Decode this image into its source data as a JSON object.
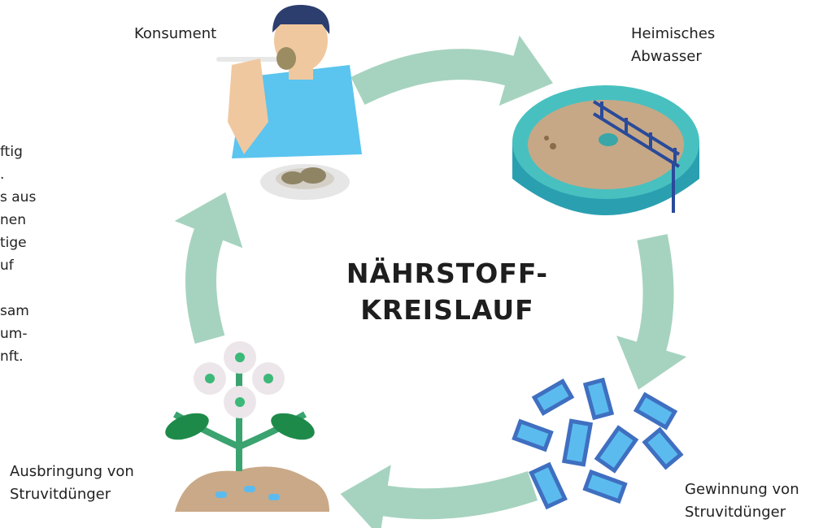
{
  "title": [
    "NÄHRSTOFF-",
    "KREISLAUF"
  ],
  "nodes": [
    {
      "label": [
        "Konsument"
      ]
    },
    {
      "label": [
        "Heimisches",
        "Abwasser"
      ]
    },
    {
      "label": [
        "Gewinnung von",
        "Struvitdünger"
      ]
    },
    {
      "label": [
        "Ausbringung von",
        "Struvitdünger"
      ]
    }
  ],
  "side_text": {
    "paragraphs": [
      [
        "ftig",
        ".",
        "s aus",
        "nen",
        "tige",
        "uf"
      ],
      [
        "sam",
        "um-",
        "nft."
      ]
    ]
  }
}
